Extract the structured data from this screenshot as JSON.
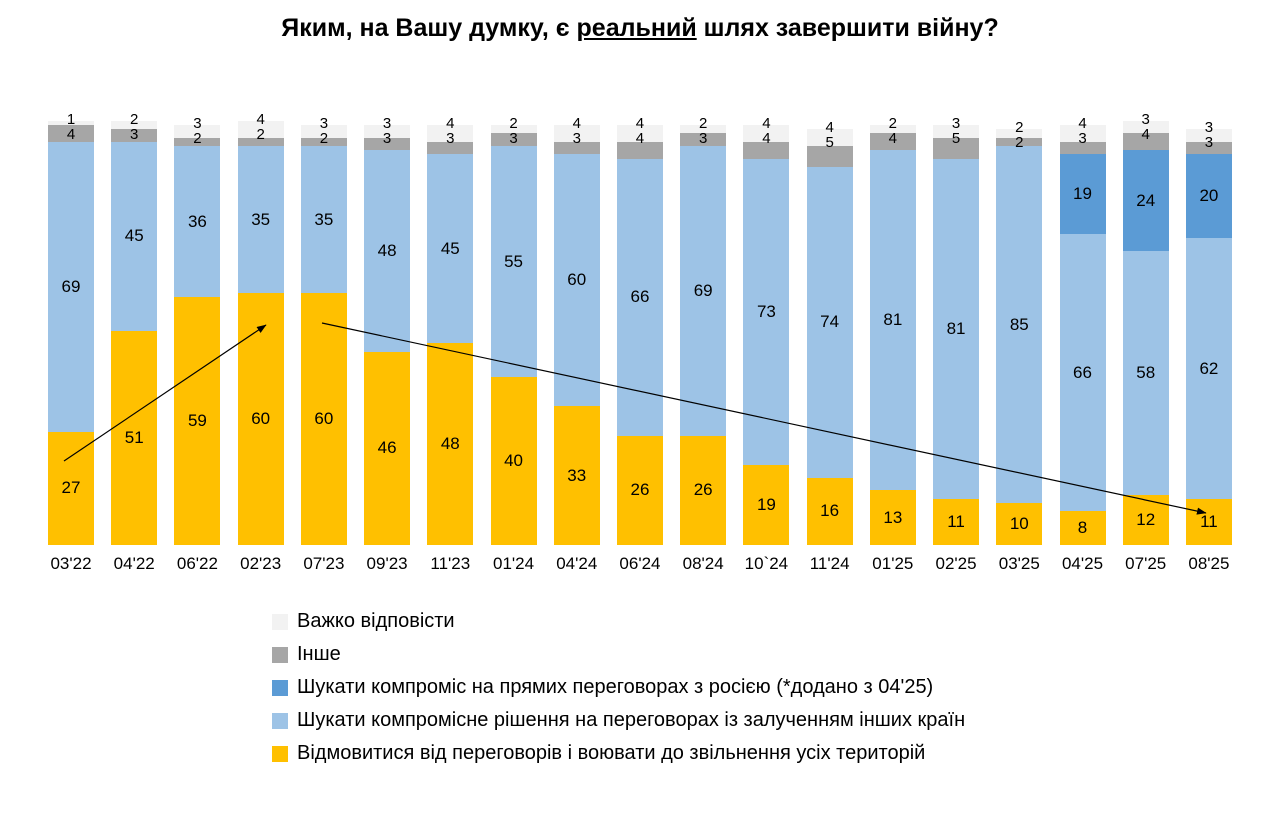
{
  "title": {
    "prefix": "Яким, на Вашу думку, є ",
    "emphasis": "реальний",
    "suffix": " шлях завершити війну?"
  },
  "chart_data": {
    "type": "bar",
    "stacked": true,
    "title": "Яким, на Вашу думку, є реальний шлях завершити війну?",
    "ylim": [
      0,
      100
    ],
    "grid": false,
    "legend_position": "bottom-left",
    "categories": [
      "03'22",
      "04'22",
      "06'22",
      "02'23",
      "07'23",
      "09'23",
      "11'23",
      "01'24",
      "04'24",
      "06'24",
      "08'24",
      "10`24",
      "11'24",
      "01'25",
      "02'25",
      "03'25",
      "04'25",
      "07'25",
      "08'25"
    ],
    "series": [
      {
        "name": "Відмовитися від переговорів і воювати до звільнення усіх територій",
        "color": "#FFC000",
        "values": [
          27,
          51,
          59,
          60,
          60,
          46,
          48,
          40,
          33,
          26,
          26,
          19,
          16,
          13,
          11,
          10,
          8,
          12,
          11
        ]
      },
      {
        "name": "Шукати компромісне рішення на переговорах із залученням інших країн",
        "color": "#9DC3E6",
        "values": [
          69,
          45,
          36,
          35,
          35,
          48,
          45,
          55,
          60,
          66,
          69,
          73,
          74,
          81,
          81,
          85,
          66,
          58,
          62
        ]
      },
      {
        "name": "Шукати компроміс на прямих переговорах з росією (*додано з 04'25)",
        "color": "#5B9BD5",
        "values": [
          0,
          0,
          0,
          0,
          0,
          0,
          0,
          0,
          0,
          0,
          0,
          0,
          0,
          0,
          0,
          0,
          19,
          24,
          20
        ]
      },
      {
        "name": "Інше",
        "color": "#A6A6A6",
        "values": [
          4,
          3,
          2,
          2,
          2,
          3,
          3,
          3,
          3,
          4,
          3,
          4,
          5,
          4,
          5,
          2,
          3,
          4,
          3
        ]
      },
      {
        "name": "Важко відповісти",
        "color": "#F2F2F2",
        "values": [
          1,
          2,
          3,
          4,
          3,
          3,
          4,
          2,
          4,
          4,
          2,
          4,
          4,
          2,
          3,
          2,
          4,
          3,
          3
        ]
      }
    ],
    "legend_display_order": [
      4,
      3,
      2,
      1,
      0
    ],
    "annotations": [
      "trend-arrow-up",
      "trend-arrow-down"
    ]
  }
}
